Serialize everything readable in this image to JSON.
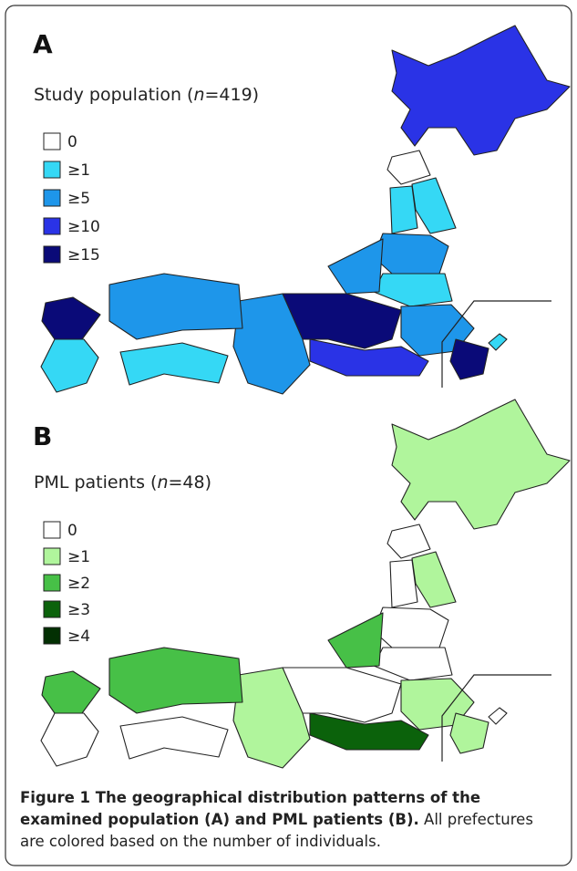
{
  "panels": [
    {
      "label": "A",
      "title": [
        "Study population (",
        "n",
        "=419)"
      ],
      "legend": [
        {
          "label": "0",
          "color": "#ffffff"
        },
        {
          "label": "≥1",
          "color": "#35d8f5"
        },
        {
          "label": "≥5",
          "color": "#1e96ea"
        },
        {
          "label": "≥10",
          "color": "#2a33e6"
        },
        {
          "label": "≥15",
          "color": "#0a0a78"
        }
      ]
    },
    {
      "label": "B",
      "title": [
        "PML patients (",
        "n",
        "=48)"
      ],
      "legend": [
        {
          "label": "0",
          "color": "#ffffff"
        },
        {
          "label": "≥1",
          "color": "#b0f59c"
        },
        {
          "label": "≥2",
          "color": "#47c047"
        },
        {
          "label": "≥3",
          "color": "#0b620b"
        },
        {
          "label": "≥4",
          "color": "#033003"
        }
      ]
    }
  ],
  "caption": {
    "bold": [
      "Figure 1 The geographical distribution patterns of the",
      "examined population (A) and PML patients (B)."
    ],
    "text": [
      " All prefectures",
      "are colored based on the number of individuals."
    ]
  }
}
